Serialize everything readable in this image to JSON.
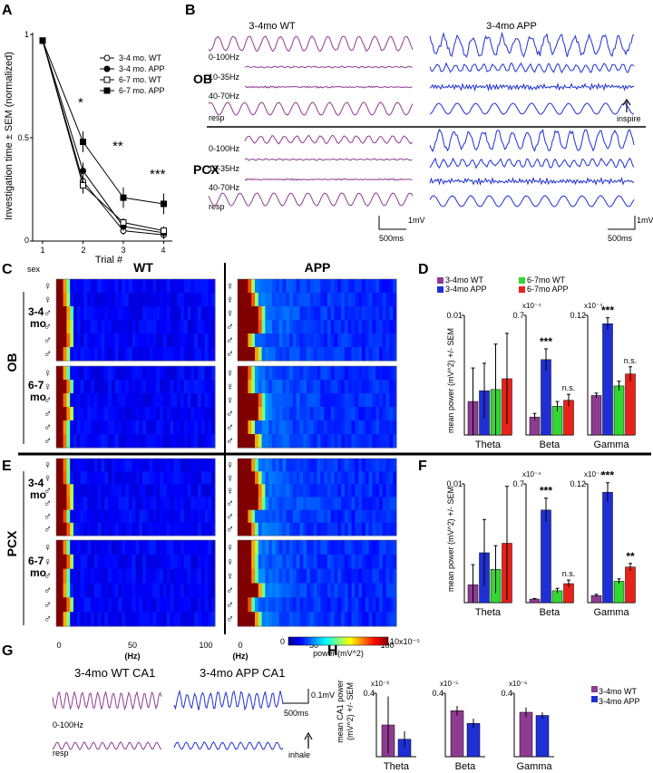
{
  "panels": {
    "A": {
      "letter": "A",
      "ylabel": "Investigation time ± SEM (normalized)",
      "xlabel": "Trial #",
      "xticks": [
        "1",
        "2",
        "3",
        "4"
      ],
      "yticks": [
        "0",
        "0.5",
        "1"
      ],
      "legend": [
        "3-4 mo. WT",
        "3-4 mo. APP",
        "6-7 mo. WT",
        "6-7 mo. APP"
      ],
      "sig": [
        "*",
        "**",
        "***"
      ]
    },
    "B": {
      "letter": "B",
      "col_titles": [
        "3-4mo WT",
        "3-4mo APP"
      ],
      "regions": [
        "OB",
        "PCX"
      ],
      "trace_labels": [
        "0-100Hz",
        "10-35Hz",
        "40-70Hz",
        "resp"
      ],
      "scale_time": "500ms",
      "scale_volt": "1mV",
      "inspire": "inspire"
    },
    "C": {
      "letter": "C",
      "wt": "WT",
      "app": "APP",
      "sex": "sex",
      "region": "OB",
      "age1": [
        "3-4",
        "mo"
      ],
      "age2": [
        "6-7",
        "mo"
      ]
    },
    "E": {
      "letter": "E",
      "region": "PCX",
      "age1": [
        "3-4",
        "mo"
      ],
      "age2": [
        "6-7",
        "mo"
      ],
      "xticks": [
        "0",
        "50",
        "100"
      ],
      "xlabel": "(Hz)",
      "cbar_label": "power (mV^2)",
      "cbar_min": "0",
      "cbar_max": "10x10⁻⁵"
    },
    "D": {
      "letter": "D",
      "ylabel": "mean power (mV^2) +/- SEM",
      "legend": [
        "3-4mo WT",
        "3-4mo APP",
        "6-7mo WT",
        "6-7mo APP"
      ],
      "groups": [
        "Theta",
        "Beta",
        "Gamma"
      ],
      "scales": [
        "0.01",
        "0.7",
        "0.12"
      ],
      "exps": [
        "",
        "x10⁻⁴",
        "x10⁻⁴"
      ]
    },
    "F": {
      "letter": "F",
      "ylabel": "mean power (mV^2) +/- SEM",
      "groups": [
        "Theta",
        "Beta",
        "Gamma"
      ],
      "scales": [
        "0.01",
        "0.7",
        "0.12"
      ],
      "exps": [
        "",
        "x10⁻⁴",
        "x10⁻⁴"
      ]
    },
    "G": {
      "letter": "G",
      "titles": [
        "3-4mo WT CA1",
        "3-4mo APP CA1"
      ],
      "band": "0-100Hz",
      "resp": "resp",
      "scale_time": "500ms",
      "scale_volt": "0.1mV",
      "inhale": "inhale"
    },
    "H": {
      "letter": "H",
      "ylabel": [
        "mean CA1 power",
        "(mV^2) +/- SEM"
      ],
      "groups": [
        "Theta",
        "Beta",
        "Gamma"
      ],
      "scales": [
        "0.4",
        "0.4",
        "0.4"
      ],
      "exps": [
        "x10⁻³",
        "x10⁻⁵",
        "x10⁻⁶"
      ],
      "legend": [
        "3-4mo WT",
        "3-4mo APP"
      ]
    }
  },
  "colors": {
    "wt34": "#8e3c92",
    "app34": "#1f2fd6",
    "wt67": "#33d633",
    "app67": "#e8221a"
  },
  "chart_data": [
    {
      "type": "line",
      "panel": "A",
      "x": [
        1,
        2,
        3,
        4
      ],
      "xlabel": "Trial #",
      "ylabel": "Investigation time ± SEM (normalized)",
      "ylim": [
        0,
        1
      ],
      "series": [
        {
          "name": "3-4 mo. WT",
          "values": [
            0.97,
            0.29,
            0.05,
            0.03
          ]
        },
        {
          "name": "3-4 mo. APP",
          "values": [
            0.97,
            0.34,
            0.07,
            0.04
          ]
        },
        {
          "name": "6-7 mo. WT",
          "values": [
            0.97,
            0.27,
            0.09,
            0.05
          ]
        },
        {
          "name": "6-7 mo. APP",
          "values": [
            0.97,
            0.48,
            0.21,
            0.18
          ]
        }
      ],
      "errors": [
        [
          0.01,
          0.04,
          0.02,
          0.02
        ],
        [
          0.01,
          0.04,
          0.02,
          0.02
        ],
        [
          0.01,
          0.04,
          0.02,
          0.02
        ],
        [
          0.01,
          0.05,
          0.05,
          0.05
        ]
      ]
    },
    {
      "type": "bar",
      "panel": "D",
      "categories": [
        "Theta",
        "Beta",
        "Gamma"
      ],
      "series": [
        {
          "name": "3-4mo WT",
          "values": [
            0.28,
            0.15,
            0.33
          ],
          "errors": [
            0.28,
            0.03,
            0.02
          ]
        },
        {
          "name": "3-4mo APP",
          "values": [
            0.37,
            0.63,
            0.93
          ],
          "errors": [
            0.23,
            0.09,
            0.05
          ]
        },
        {
          "name": "6-7mo WT",
          "values": [
            0.38,
            0.24,
            0.41
          ],
          "errors": [
            0.38,
            0.04,
            0.04
          ]
        },
        {
          "name": "6-7mo APP",
          "values": [
            0.47,
            0.29,
            0.51
          ],
          "errors": [
            0.38,
            0.05,
            0.06
          ]
        }
      ],
      "sig": [
        [
          "",
          "***",
          "n.s."
        ],
        [
          "",
          "***",
          "n.s."
        ]
      ]
    },
    {
      "type": "bar",
      "panel": "F",
      "categories": [
        "Theta",
        "Beta",
        "Gamma"
      ],
      "series": [
        {
          "name": "3-4mo WT",
          "values": [
            0.15,
            0.03,
            0.06
          ],
          "errors": [
            0.17,
            0.005,
            0.01
          ]
        },
        {
          "name": "3-4mo APP",
          "values": [
            0.42,
            0.78,
            0.93
          ],
          "errors": [
            0.28,
            0.1,
            0.08
          ]
        },
        {
          "name": "6-7mo WT",
          "values": [
            0.28,
            0.1,
            0.18
          ],
          "errors": [
            0.2,
            0.02,
            0.02
          ]
        },
        {
          "name": "6-7mo APP",
          "values": [
            0.5,
            0.16,
            0.3
          ],
          "errors": [
            0.48,
            0.03,
            0.03
          ]
        }
      ]
    },
    {
      "type": "bar",
      "panel": "H",
      "categories": [
        "Theta",
        "Beta",
        "Gamma"
      ],
      "series": [
        {
          "name": "3-4mo WT",
          "values": [
            0.2,
            0.29,
            0.28
          ],
          "errors": [
            0.18,
            0.03,
            0.03
          ]
        },
        {
          "name": "3-4mo APP",
          "values": [
            0.11,
            0.21,
            0.26
          ],
          "errors": [
            0.05,
            0.03,
            0.02
          ]
        }
      ]
    }
  ]
}
